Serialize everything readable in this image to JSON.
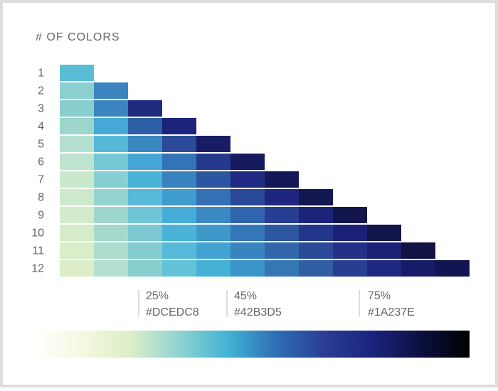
{
  "header": {
    "title": "# OF COLORS"
  },
  "rows": [
    {
      "label": "1",
      "colors": [
        "#5bbcd6"
      ]
    },
    {
      "label": "2",
      "colors": [
        "#8ccfd0",
        "#3a85bf"
      ]
    },
    {
      "label": "3",
      "colors": [
        "#8acfd0",
        "#3a85bf",
        "#1e2b7e"
      ]
    },
    {
      "label": "4",
      "colors": [
        "#9dd6cc",
        "#45a8d6",
        "#2d5fa6",
        "#1b237a"
      ]
    },
    {
      "label": "5",
      "colors": [
        "#b3e0d0",
        "#57b9d8",
        "#3a88c0",
        "#2b4b99",
        "#171c64"
      ]
    },
    {
      "label": "6",
      "colors": [
        "#bfe4cf",
        "#76c7d6",
        "#45a6d5",
        "#3274b6",
        "#253a8e",
        "#141a5c"
      ]
    },
    {
      "label": "7",
      "colors": [
        "#c8e9cc",
        "#86cfd2",
        "#49b4d8",
        "#3882c0",
        "#2c56a1",
        "#1f2a83",
        "#141857"
      ]
    },
    {
      "label": "8",
      "colors": [
        "#cceacb",
        "#93d3d0",
        "#56bad8",
        "#3f9ccc",
        "#3470b3",
        "#2a4898",
        "#1e2680",
        "#131752"
      ]
    },
    {
      "label": "9",
      "colors": [
        "#d2ebca",
        "#9ed6ce",
        "#6fc5d5",
        "#46add6",
        "#3a89c3",
        "#3064ac",
        "#273e92",
        "#1c247a",
        "#12164d"
      ]
    },
    {
      "label": "10",
      "colors": [
        "#d6ecc9",
        "#a5d9cd",
        "#7bc8d1",
        "#4ab3d7",
        "#3f98ca",
        "#3477b8",
        "#2d58a0",
        "#24368c",
        "#1b2276",
        "#111548"
      ]
    },
    {
      "label": "11",
      "colors": [
        "#d8edc8",
        "#aedccc",
        "#84cccf",
        "#57b9d8",
        "#42a3d2",
        "#3884c1",
        "#3067ad",
        "#2a4a97",
        "#223186",
        "#1a2073",
        "#111443"
      ]
    },
    {
      "label": "12",
      "colors": [
        "#dcedc8",
        "#b3e0d0",
        "#8acfcf",
        "#63c3d8",
        "#45b1d6",
        "#3b94c8",
        "#3577b3",
        "#2f5ea3",
        "#283f8f",
        "#1e2880",
        "#171c68",
        "#111650"
      ]
    }
  ],
  "annotations": [
    {
      "percent": "25%",
      "hex": "#DCEDC8"
    },
    {
      "percent": "45%",
      "hex": "#42B3D5"
    },
    {
      "percent": "75%",
      "hex": "#1A237E"
    }
  ],
  "gradient_colors": [
    "#ffffff",
    "#f6f8e0",
    "#dcedc8",
    "#8fd3d0",
    "#42b3d5",
    "#2d6fb4",
    "#2a3d95",
    "#1a237e",
    "#0c1040",
    "#000000"
  ]
}
